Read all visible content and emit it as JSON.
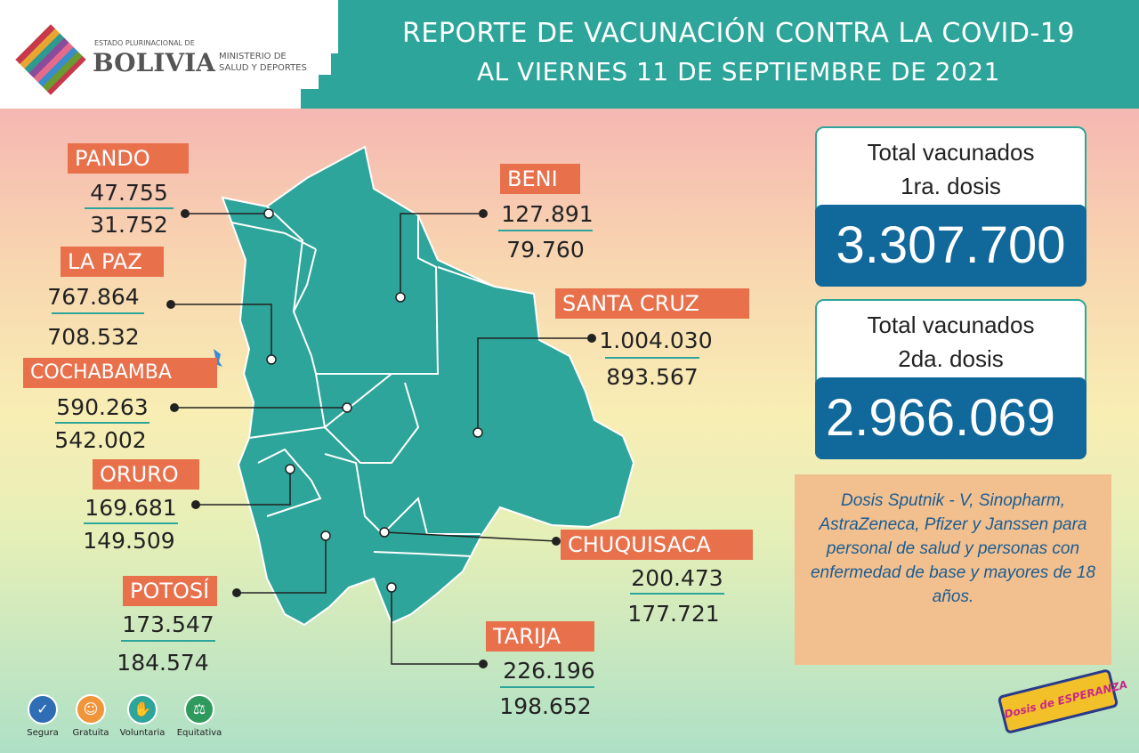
{
  "header": {
    "title_line1": "REPORTE DE VACUNACIÓN CONTRA LA COVID-19",
    "title_line2": "AL VIERNES 11 DE SEPTIEMBRE DE 2021"
  },
  "logo": {
    "small": "ESTADO PLURINACIONAL DE",
    "big": "BOLIVIA",
    "ministry_line1": "MINISTERIO DE",
    "ministry_line2": "SALUD Y DEPORTES"
  },
  "departments": [
    {
      "name": "PANDO",
      "dose1": "47.755",
      "dose2": "31.752"
    },
    {
      "name": "LA PAZ",
      "dose1": "767.864",
      "dose2": "708.532"
    },
    {
      "name": "COCHABAMBA",
      "dose1": "590.263",
      "dose2": "542.002"
    },
    {
      "name": "ORURO",
      "dose1": "169.681",
      "dose2": "149.509"
    },
    {
      "name": "POTOSÍ",
      "dose1": "173.547",
      "dose2": "184.574"
    },
    {
      "name": "BENI",
      "dose1": "127.891",
      "dose2": "79.760"
    },
    {
      "name": "SANTA CRUZ",
      "dose1": "1.004.030",
      "dose2": "893.567"
    },
    {
      "name": "CHUQUISACA",
      "dose1": "200.473",
      "dose2": "177.721"
    },
    {
      "name": "TARIJA",
      "dose1": "226.196",
      "dose2": "198.652"
    }
  ],
  "totals": [
    {
      "line1": "Total vacunados",
      "line2": "1ra. dosis",
      "value": "3.307.700"
    },
    {
      "line1": "Total vacunados",
      "line2": "2da. dosis",
      "value": "2.966.069"
    }
  ],
  "note": "Dosis Sputnik - V, Sinopharm, AstraZeneca, Pfizer y Janssen para personal de salud y personas con enfermedad de base y mayores de 18 años.",
  "campaign_logo": "Dosis de ESPERANZA",
  "badges": [
    {
      "label": "Segura",
      "icon": "shield-check-icon",
      "color": "#2f6db5"
    },
    {
      "label": "Gratuita",
      "icon": "smile-icon",
      "color": "#f0953a"
    },
    {
      "label": "Voluntaria",
      "icon": "raised-hand-icon",
      "color": "#2ea59a"
    },
    {
      "label": "Equitativa",
      "icon": "scales-icon",
      "color": "#2e9a5e"
    }
  ],
  "colors": {
    "teal": "#2ea59a",
    "label_orange": "#e8714c",
    "total_blue": "#11689a",
    "note_blue": "#1b5c92"
  }
}
